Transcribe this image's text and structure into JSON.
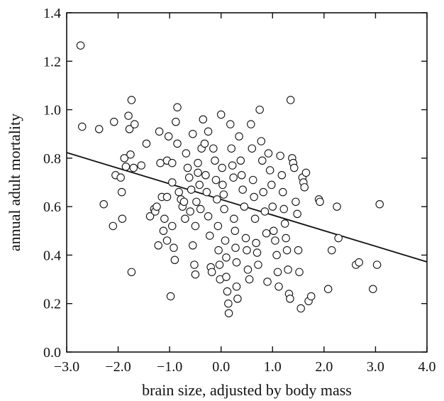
{
  "chart_data": {
    "type": "scatter",
    "title": "",
    "xlabel": "brain size, adjusted by body mass",
    "ylabel": "annual adult mortality",
    "xlim": [
      -3.0,
      4.0
    ],
    "ylim": [
      0.0,
      1.4
    ],
    "x_ticks": [
      -3.0,
      -2.0,
      -1.0,
      0.0,
      1.0,
      2.0,
      3.0,
      4.0
    ],
    "x_tick_labels": [
      "−3.0",
      "−2.0",
      "−1.0",
      "0.0",
      "1.0",
      "2.0",
      "3.0",
      "4.0"
    ],
    "y_ticks": [
      0.0,
      0.2,
      0.4,
      0.6,
      0.8,
      1.0,
      1.2,
      1.4
    ],
    "y_tick_labels": [
      "0.0",
      "0.2",
      "0.4",
      "0.6",
      "0.8",
      "1.0",
      "1.2",
      "1.4"
    ],
    "grid": false,
    "regression_line": {
      "x": [
        -3.0,
        4.0
      ],
      "y": [
        0.823,
        0.372
      ]
    },
    "points": [
      [
        -2.73,
        1.265
      ],
      [
        -2.7,
        0.93
      ],
      [
        -2.37,
        0.92
      ],
      [
        -2.28,
        0.61
      ],
      [
        -2.1,
        0.52
      ],
      [
        -2.08,
        0.95
      ],
      [
        -2.05,
        0.73
      ],
      [
        -1.95,
        0.72
      ],
      [
        -1.93,
        0.66
      ],
      [
        -1.92,
        0.55
      ],
      [
        -1.88,
        0.8
      ],
      [
        -1.85,
        0.765
      ],
      [
        -1.8,
        0.975
      ],
      [
        -1.78,
        0.92
      ],
      [
        -1.76,
        0.815
      ],
      [
        -1.74,
        1.04
      ],
      [
        -1.74,
        0.33
      ],
      [
        -1.7,
        0.76
      ],
      [
        -1.68,
        0.94
      ],
      [
        -1.55,
        0.77
      ],
      [
        -1.45,
        0.86
      ],
      [
        -1.38,
        0.56
      ],
      [
        -1.3,
        0.59
      ],
      [
        -1.28,
        0.58
      ],
      [
        -1.25,
        0.6
      ],
      [
        -1.22,
        0.44
      ],
      [
        -1.2,
        0.91
      ],
      [
        -1.18,
        0.78
      ],
      [
        -1.15,
        0.64
      ],
      [
        -1.12,
        0.5
      ],
      [
        -1.1,
        0.55
      ],
      [
        -1.05,
        0.46
      ],
      [
        -1.05,
        0.64
      ],
      [
        -1.05,
        0.79
      ],
      [
        -1.02,
        0.89
      ],
      [
        -0.98,
        0.23
      ],
      [
        -0.95,
        0.7
      ],
      [
        -0.95,
        0.52
      ],
      [
        -0.95,
        0.78
      ],
      [
        -0.92,
        0.43
      ],
      [
        -0.9,
        0.38
      ],
      [
        -0.88,
        0.95
      ],
      [
        -0.85,
        1.01
      ],
      [
        -0.85,
        0.86
      ],
      [
        -0.82,
        0.66
      ],
      [
        -0.78,
        0.63
      ],
      [
        -0.75,
        0.6
      ],
      [
        -0.72,
        0.62
      ],
      [
        -0.7,
        0.55
      ],
      [
        -0.68,
        0.82
      ],
      [
        -0.65,
        0.76
      ],
      [
        -0.62,
        0.72
      ],
      [
        -0.6,
        0.58
      ],
      [
        -0.58,
        0.67
      ],
      [
        -0.55,
        0.9
      ],
      [
        -0.55,
        0.44
      ],
      [
        -0.52,
        0.36
      ],
      [
        -0.5,
        0.52
      ],
      [
        -0.5,
        0.32
      ],
      [
        -0.48,
        0.62
      ],
      [
        -0.45,
        0.78
      ],
      [
        -0.45,
        0.74
      ],
      [
        -0.42,
        0.69
      ],
      [
        -0.4,
        0.59
      ],
      [
        -0.38,
        0.84
      ],
      [
        -0.35,
        0.96
      ],
      [
        -0.32,
        0.86
      ],
      [
        -0.3,
        0.73
      ],
      [
        -0.28,
        0.66
      ],
      [
        -0.25,
        0.91
      ],
      [
        -0.25,
        0.56
      ],
      [
        -0.22,
        0.48
      ],
      [
        -0.2,
        0.35
      ],
      [
        -0.18,
        0.33
      ],
      [
        -0.15,
        0.84
      ],
      [
        -0.12,
        0.79
      ],
      [
        -0.1,
        0.71
      ],
      [
        -0.08,
        0.63
      ],
      [
        -0.06,
        0.52
      ],
      [
        -0.05,
        0.42
      ],
      [
        -0.03,
        0.36
      ],
      [
        -0.02,
        0.3
      ],
      [
        0.0,
        0.98
      ],
      [
        0.02,
        0.76
      ],
      [
        0.03,
        0.69
      ],
      [
        0.05,
        0.65
      ],
      [
        0.06,
        0.59
      ],
      [
        0.08,
        0.46
      ],
      [
        0.1,
        0.39
      ],
      [
        0.1,
        0.31
      ],
      [
        0.12,
        0.25
      ],
      [
        0.14,
        0.2
      ],
      [
        0.15,
        0.16
      ],
      [
        0.18,
        0.94
      ],
      [
        0.2,
        0.84
      ],
      [
        0.22,
        0.77
      ],
      [
        0.24,
        0.72
      ],
      [
        0.25,
        0.55
      ],
      [
        0.27,
        0.5
      ],
      [
        0.28,
        0.43
      ],
      [
        0.3,
        0.37
      ],
      [
        0.3,
        0.27
      ],
      [
        0.32,
        0.22
      ],
      [
        0.35,
        0.89
      ],
      [
        0.38,
        0.79
      ],
      [
        0.4,
        0.73
      ],
      [
        0.42,
        0.67
      ],
      [
        0.45,
        0.6
      ],
      [
        0.48,
        0.47
      ],
      [
        0.5,
        0.42
      ],
      [
        0.52,
        0.34
      ],
      [
        0.55,
        0.3
      ],
      [
        0.58,
        0.94
      ],
      [
        0.6,
        0.84
      ],
      [
        0.62,
        0.71
      ],
      [
        0.64,
        0.64
      ],
      [
        0.66,
        0.55
      ],
      [
        0.68,
        0.45
      ],
      [
        0.7,
        0.41
      ],
      [
        0.72,
        0.36
      ],
      [
        0.75,
        1.0
      ],
      [
        0.78,
        0.87
      ],
      [
        0.8,
        0.79
      ],
      [
        0.82,
        0.66
      ],
      [
        0.85,
        0.58
      ],
      [
        0.88,
        0.49
      ],
      [
        0.9,
        0.29
      ],
      [
        0.92,
        0.82
      ],
      [
        0.95,
        0.75
      ],
      [
        0.98,
        0.69
      ],
      [
        1.0,
        0.6
      ],
      [
        1.02,
        0.5
      ],
      [
        1.05,
        0.46
      ],
      [
        1.08,
        0.4
      ],
      [
        1.1,
        0.33
      ],
      [
        1.12,
        0.27
      ],
      [
        1.15,
        0.81
      ],
      [
        1.18,
        0.73
      ],
      [
        1.2,
        0.66
      ],
      [
        1.22,
        0.59
      ],
      [
        1.24,
        0.53
      ],
      [
        1.26,
        0.47
      ],
      [
        1.28,
        0.42
      ],
      [
        1.3,
        0.34
      ],
      [
        1.32,
        0.24
      ],
      [
        1.34,
        0.22
      ],
      [
        1.35,
        1.04
      ],
      [
        1.38,
        0.8
      ],
      [
        1.4,
        0.78
      ],
      [
        1.42,
        0.76
      ],
      [
        1.45,
        0.62
      ],
      [
        1.48,
        0.57
      ],
      [
        1.5,
        0.42
      ],
      [
        1.52,
        0.33
      ],
      [
        1.55,
        0.18
      ],
      [
        1.58,
        0.72
      ],
      [
        1.6,
        0.7
      ],
      [
        1.62,
        0.68
      ],
      [
        1.65,
        0.74
      ],
      [
        1.7,
        0.21
      ],
      [
        1.75,
        0.23
      ],
      [
        1.9,
        0.63
      ],
      [
        1.92,
        0.62
      ],
      [
        2.08,
        0.26
      ],
      [
        2.15,
        0.42
      ],
      [
        2.25,
        0.6
      ],
      [
        2.28,
        0.47
      ],
      [
        2.62,
        0.36
      ],
      [
        2.68,
        0.37
      ],
      [
        2.95,
        0.26
      ],
      [
        3.03,
        0.36
      ],
      [
        3.08,
        0.61
      ]
    ]
  }
}
